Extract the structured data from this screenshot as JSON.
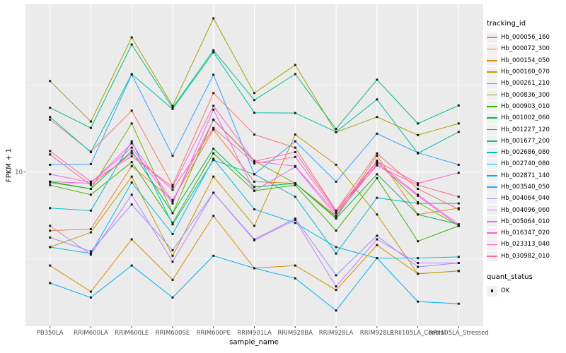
{
  "chart_data": {
    "type": "line",
    "title": "",
    "xlabel": "sample_name",
    "ylabel": "FPKM + 1",
    "y_scale": "log10",
    "ylim": [
      1.3,
      92
    ],
    "y_ticks": [
      "10"
    ],
    "grid": true,
    "panel_bg": "#EBEBEB",
    "grid_color": "#FFFFFF",
    "point_color": "#1a1a1a",
    "categories": [
      "PB350LA",
      "RRIM600LA",
      "RRIM600LE",
      "RRIM600SE",
      "RRIM600PE",
      "RRIM901LA",
      "RRIM928BA",
      "RRIM928LA",
      "RRIM928LE",
      "RRII105LA_Control",
      "RRII105LA_Stressed"
    ],
    "series": [
      {
        "name": "Hb_000056_160",
        "color": "#F8766D",
        "values": [
          20,
          13.1,
          22.5,
          8.4,
          28.4,
          16.4,
          13.8,
          6.0,
          12.8,
          8.0,
          6.1
        ]
      },
      {
        "name": "Hb_000072_300",
        "color": "#EA8331",
        "values": [
          4.6,
          4.7,
          10.8,
          6.9,
          17.5,
          8.8,
          8.6,
          5.6,
          12.4,
          5.7,
          6.2
        ]
      },
      {
        "name": "Hb_000154_050",
        "color": "#D89000",
        "values": [
          2.9,
          2.05,
          4.1,
          2.4,
          5.6,
          2.8,
          2.9,
          2.1,
          3.8,
          2.6,
          2.7
        ]
      },
      {
        "name": "Hb_000160_070",
        "color": "#C09B00",
        "values": [
          3.7,
          4.5,
          9.4,
          3.3,
          9.4,
          4.9,
          16.4,
          11.0,
          5.7,
          2.6,
          2.7
        ]
      },
      {
        "name": "Hb_000261_210",
        "color": "#A3A500",
        "values": [
          33.3,
          19.5,
          59.3,
          24.0,
          76.3,
          28.4,
          41.2,
          16.9,
          20.7,
          16.3,
          19.0
        ]
      },
      {
        "name": "Hb_000836_300",
        "color": "#7CAE00",
        "values": [
          8.7,
          8.0,
          19.0,
          5.8,
          20.0,
          11.6,
          8.6,
          5.5,
          11.6,
          6.7,
          4.9
        ]
      },
      {
        "name": "Hb_000903_010",
        "color": "#39B600",
        "values": [
          8.4,
          7.4,
          11.4,
          5.1,
          12.8,
          7.8,
          8.4,
          4.6,
          9.2,
          4.0,
          4.9
        ]
      },
      {
        "name": "Hb_001002_060",
        "color": "#00BB4E",
        "values": [
          8.8,
          8.0,
          13.2,
          5.8,
          13.6,
          8.2,
          8.6,
          5.4,
          9.7,
          5.7,
          5.0
        ]
      },
      {
        "name": "Hb_001227_120",
        "color": "#00BF7D",
        "values": [
          23.4,
          17.9,
          54.0,
          23.4,
          50.0,
          25.9,
          36.5,
          17.7,
          33.9,
          19.0,
          24.1
        ]
      },
      {
        "name": "Hb_001677_200",
        "color": "#00C1A3",
        "values": [
          20.7,
          13.0,
          36.5,
          23.0,
          48.7,
          21.9,
          21.8,
          17.0,
          26.1,
          12.8,
          17.0
        ]
      },
      {
        "name": "Hb_002686_080",
        "color": "#00BFC4",
        "values": [
          6.2,
          6.0,
          15.0,
          5.0,
          11.7,
          9.7,
          7.2,
          3.4,
          7.1,
          6.6,
          6.6
        ]
      },
      {
        "name": "Hb_002740_080",
        "color": "#00BAE0",
        "values": [
          3.7,
          3.4,
          8.7,
          4.4,
          11.9,
          6.1,
          5.1,
          3.7,
          3.2,
          3.2,
          3.25
        ]
      },
      {
        "name": "Hb_002871_140",
        "color": "#00B0F6",
        "values": [
          2.3,
          1.9,
          2.9,
          1.9,
          3.3,
          2.8,
          2.45,
          1.6,
          3.2,
          1.8,
          1.75
        ]
      },
      {
        "name": "Hb_003540_050",
        "color": "#35A2FF",
        "values": [
          11.0,
          11.1,
          36.3,
          12.4,
          36.2,
          9.7,
          15.0,
          8.8,
          16.6,
          12.9,
          11.0
        ]
      },
      {
        "name": "Hb_004064_040",
        "color": "#9590FF",
        "values": [
          4.2,
          3.5,
          6.5,
          3.55,
          7.6,
          4.1,
          5.4,
          2.55,
          4.3,
          2.85,
          3.0
        ]
      },
      {
        "name": "Hb_004096_060",
        "color": "#C77CFF",
        "values": [
          4.9,
          3.35,
          7.4,
          3.05,
          7.6,
          4.05,
          5.3,
          2.2,
          4.1,
          3.0,
          3.0
        ]
      },
      {
        "name": "Hb_005064_010",
        "color": "#E76BF3",
        "values": [
          9.7,
          8.7,
          13.8,
          6.6,
          22.8,
          7.8,
          10.7,
          5.6,
          11.1,
          7.3,
          4.9
        ]
      },
      {
        "name": "Hb_016347_020",
        "color": "#FA62DB",
        "values": [
          8.8,
          8.6,
          14.6,
          6.8,
          19.9,
          11.5,
          10.8,
          5.8,
          11.4,
          7.4,
          5.0
        ]
      },
      {
        "name": "Hb_023313_040",
        "color": "#FF61C3",
        "values": [
          13.2,
          8.8,
          12.3,
          8.2,
          24.0,
          11.5,
          13.0,
          6.0,
          11.5,
          8.6,
          9.9
        ]
      },
      {
        "name": "Hb_030982_010",
        "color": "#FF6A98",
        "values": [
          12.6,
          8.4,
          12.8,
          7.9,
          17.9,
          11.2,
          12.2,
          5.9,
          10.9,
          8.4,
          7.2
        ]
      }
    ],
    "legend": {
      "position": "right",
      "tracking_title": "tracking_id",
      "quant_title": "quant_status",
      "quant_items": [
        {
          "label": "OK",
          "marker": "black-square"
        }
      ]
    }
  }
}
